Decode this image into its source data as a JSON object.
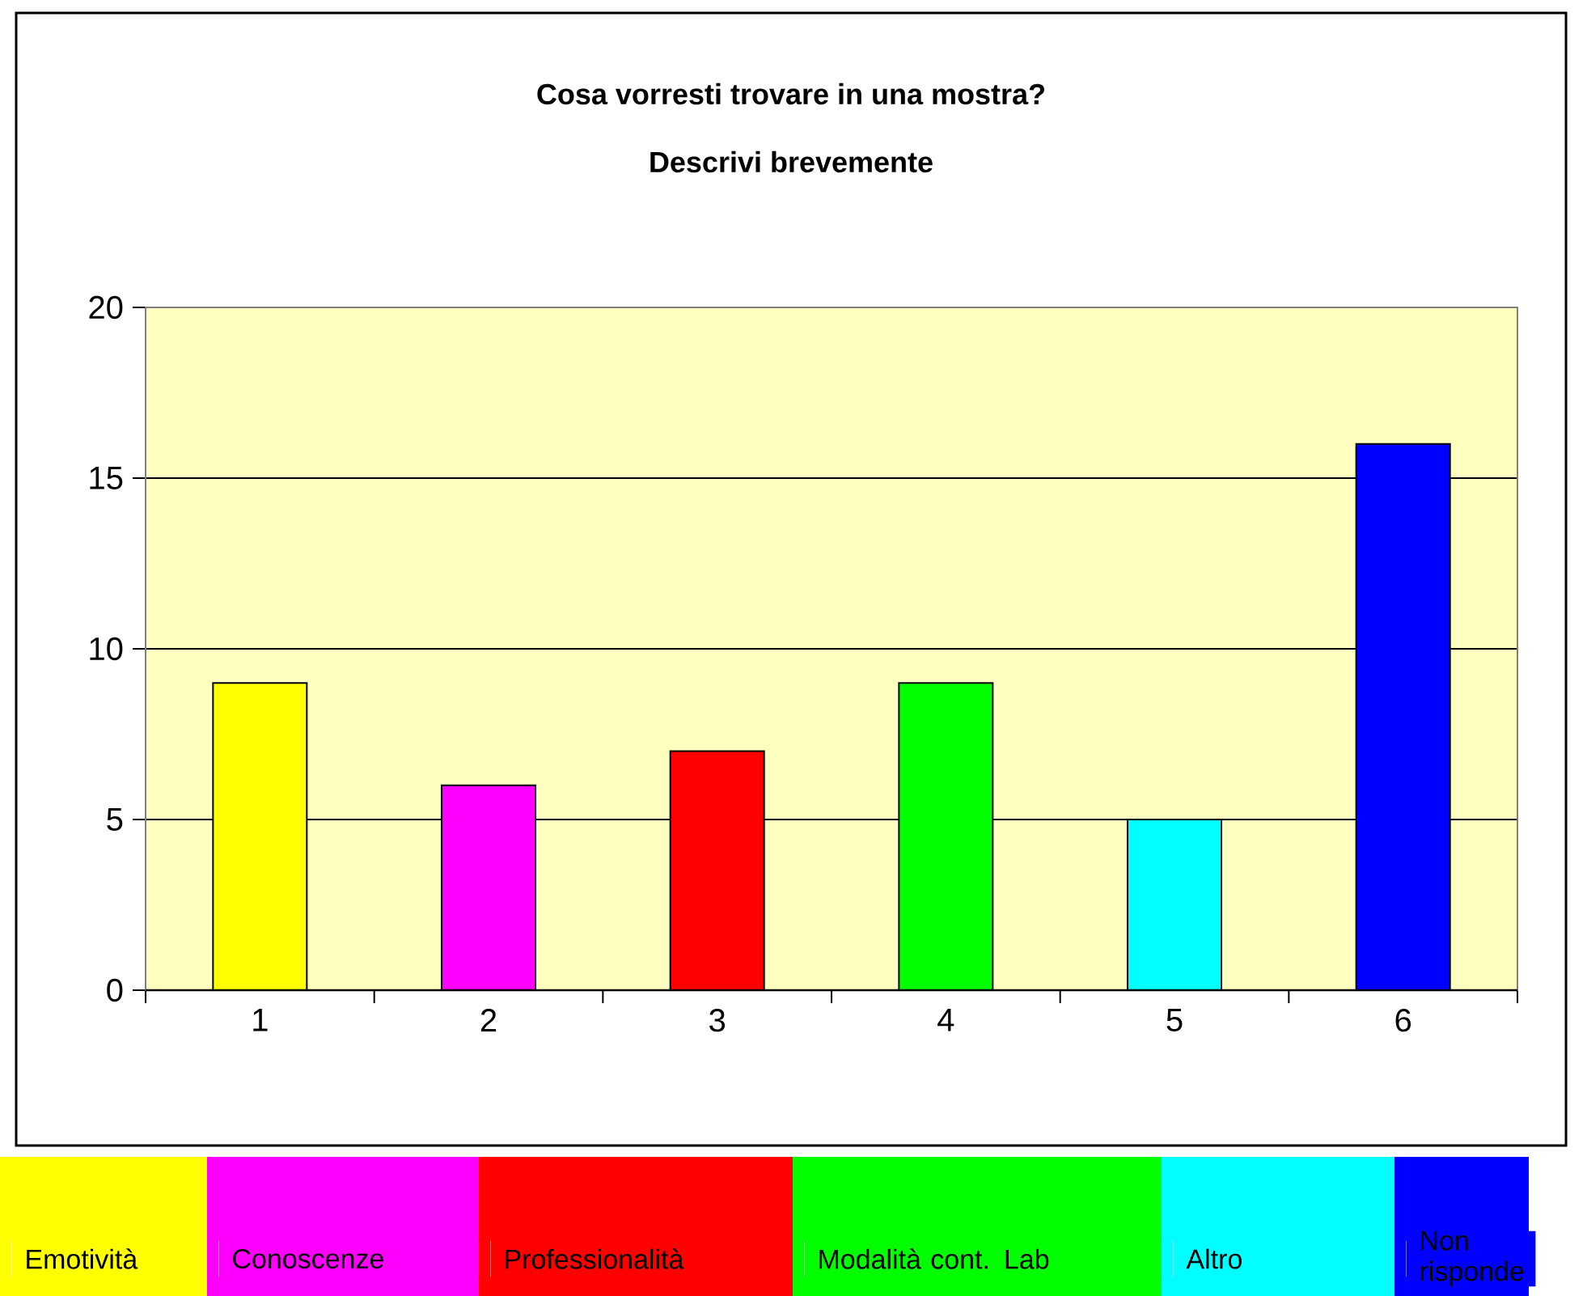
{
  "chart_data": {
    "type": "bar",
    "title": "Cosa vorresti trovare in una mostra?",
    "subtitle": "Descrivi brevemente",
    "categories": [
      "1",
      "2",
      "3",
      "4",
      "5",
      "6"
    ],
    "series": [
      {
        "name": "Emotività",
        "color": "#ffff00",
        "values": [
          9,
          null,
          null,
          null,
          null,
          null
        ]
      },
      {
        "name": "Conoscenze",
        "color": "#ff00ff",
        "values": [
          null,
          6,
          null,
          null,
          null,
          null
        ]
      },
      {
        "name": "Professionalità",
        "color": "#ff0000",
        "values": [
          null,
          null,
          7,
          null,
          null,
          null
        ]
      },
      {
        "name": "Modalità cont. Lab",
        "color": "#00ff00",
        "values": [
          null,
          null,
          null,
          9,
          null,
          null
        ]
      },
      {
        "name": "Altro",
        "color": "#00ffff",
        "values": [
          null,
          null,
          null,
          null,
          5,
          null
        ]
      },
      {
        "name": "Non risponde",
        "color": "#0000ff",
        "values": [
          null,
          null,
          null,
          null,
          null,
          16
        ]
      }
    ],
    "ylim": [
      0,
      20
    ],
    "yticks": [
      0,
      5,
      10,
      15,
      20
    ],
    "grid": "y",
    "legend": "bottom"
  }
}
